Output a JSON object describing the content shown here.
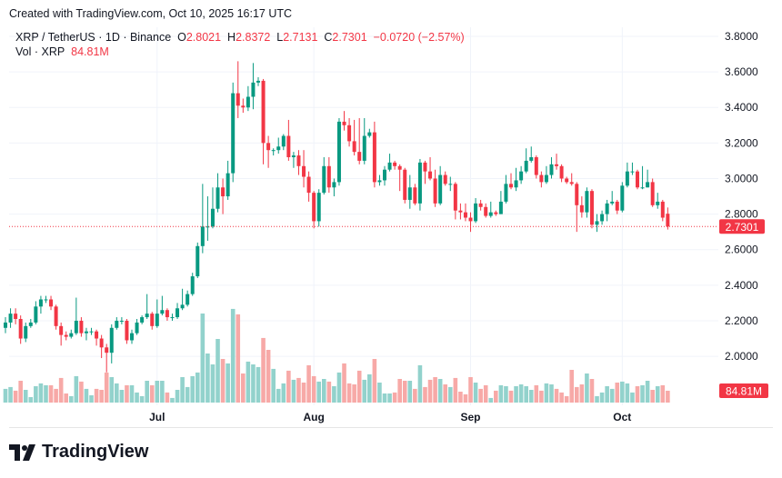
{
  "header": {
    "created": "Created with TradingView.com, Oct 10, 2025 16:17 UTC"
  },
  "legend": {
    "symbol": "XRP / TetherUS · 1D · Binance",
    "o_label": "O",
    "o": "2.8021",
    "h_label": "H",
    "h": "2.8372",
    "l_label": "L",
    "l": "2.7131",
    "c_label": "C",
    "c": "2.7301",
    "change": "−0.0720 (−2.57%)",
    "vol_label": "Vol · XRP",
    "vol": "84.81M"
  },
  "branding": {
    "logo_text": "TradingView"
  },
  "chart_data": {
    "type": "candlestick",
    "title": "XRP / TetherUS · 1D · Binance",
    "ylim": [
      1.9,
      3.8
    ],
    "y_ticks": [
      "3.8000",
      "3.6000",
      "3.4000",
      "3.2000",
      "3.0000",
      "2.8000",
      "2.6000",
      "2.4000",
      "2.2000",
      "2.0000"
    ],
    "x_ticks": [
      {
        "label": "Jul",
        "date": "2025-07-01"
      },
      {
        "label": "Aug",
        "date": "2025-08-01"
      },
      {
        "label": "Sep",
        "date": "2025-09-01"
      },
      {
        "label": "Oct",
        "date": "2025-10-01"
      }
    ],
    "last_price": "2.7301",
    "last_volume": "84.81M",
    "grid": true,
    "colors": {
      "up": "#089981",
      "down": "#F23645",
      "vol_up": "#92D2CC",
      "vol_down": "#F7A9A7"
    },
    "columns": [
      "date",
      "open",
      "high",
      "low",
      "close",
      "volume_M"
    ],
    "candles": [
      [
        "2025-06-01",
        2.16,
        2.22,
        2.13,
        2.19,
        98
      ],
      [
        "2025-06-02",
        2.19,
        2.27,
        2.16,
        2.24,
        111
      ],
      [
        "2025-06-03",
        2.24,
        2.27,
        2.18,
        2.21,
        85
      ],
      [
        "2025-06-04",
        2.21,
        2.23,
        2.07,
        2.1,
        156
      ],
      [
        "2025-06-05",
        2.1,
        2.19,
        2.08,
        2.17,
        91
      ],
      [
        "2025-06-06",
        2.17,
        2.21,
        2.16,
        2.19,
        39
      ],
      [
        "2025-06-07",
        2.19,
        2.31,
        2.18,
        2.28,
        117
      ],
      [
        "2025-06-08",
        2.28,
        2.34,
        2.24,
        2.32,
        137
      ],
      [
        "2025-06-09",
        2.32,
        2.34,
        2.3,
        2.32,
        124
      ],
      [
        "2025-06-10",
        2.32,
        2.34,
        2.26,
        2.28,
        124
      ],
      [
        "2025-06-11",
        2.28,
        2.29,
        2.15,
        2.17,
        98
      ],
      [
        "2025-06-12",
        2.17,
        2.19,
        2.06,
        2.12,
        176
      ],
      [
        "2025-06-13",
        2.12,
        2.14,
        2.09,
        2.11,
        65
      ],
      [
        "2025-06-14",
        2.11,
        2.15,
        2.1,
        2.13,
        46
      ],
      [
        "2025-06-15",
        2.13,
        2.33,
        2.12,
        2.2,
        189
      ],
      [
        "2025-06-16",
        2.2,
        2.22,
        2.11,
        2.13,
        150
      ],
      [
        "2025-06-17",
        2.13,
        2.16,
        2.09,
        2.14,
        98
      ],
      [
        "2025-06-18",
        2.14,
        2.16,
        2.12,
        2.14,
        52
      ],
      [
        "2025-06-19",
        2.14,
        2.15,
        2.06,
        2.1,
        98
      ],
      [
        "2025-06-20",
        2.1,
        2.12,
        1.99,
        2.05,
        91
      ],
      [
        "2025-06-21",
        2.05,
        2.07,
        1.91,
        2.02,
        215
      ],
      [
        "2025-06-22",
        2.02,
        2.18,
        1.96,
        2.16,
        182
      ],
      [
        "2025-06-23",
        2.16,
        2.22,
        2.15,
        2.2,
        137
      ],
      [
        "2025-06-24",
        2.2,
        2.22,
        2.18,
        2.2,
        91
      ],
      [
        "2025-06-25",
        2.2,
        2.21,
        2.07,
        2.09,
        124
      ],
      [
        "2025-06-26",
        2.09,
        2.15,
        2.07,
        2.13,
        124
      ],
      [
        "2025-06-27",
        2.13,
        2.21,
        2.12,
        2.19,
        72
      ],
      [
        "2025-06-28",
        2.19,
        2.23,
        2.18,
        2.22,
        46
      ],
      [
        "2025-06-29",
        2.22,
        2.35,
        2.21,
        2.24,
        156
      ],
      [
        "2025-06-30",
        2.24,
        2.25,
        2.15,
        2.17,
        124
      ],
      [
        "2025-07-01",
        2.17,
        2.32,
        2.16,
        2.24,
        156
      ],
      [
        "2025-07-02",
        2.24,
        2.34,
        2.23,
        2.26,
        156
      ],
      [
        "2025-07-03",
        2.26,
        2.27,
        2.2,
        2.22,
        72
      ],
      [
        "2025-07-04",
        2.22,
        2.24,
        2.2,
        2.22,
        33
      ],
      [
        "2025-07-05",
        2.22,
        2.3,
        2.21,
        2.27,
        91
      ],
      [
        "2025-07-06",
        2.27,
        2.38,
        2.26,
        2.29,
        182
      ],
      [
        "2025-07-07",
        2.29,
        2.37,
        2.28,
        2.35,
        111
      ],
      [
        "2025-07-08",
        2.35,
        2.47,
        2.34,
        2.45,
        189
      ],
      [
        "2025-07-09",
        2.45,
        2.64,
        2.44,
        2.62,
        215
      ],
      [
        "2025-07-10",
        2.62,
        2.97,
        2.58,
        2.73,
        637
      ],
      [
        "2025-07-11",
        2.73,
        2.9,
        2.65,
        2.73,
        351
      ],
      [
        "2025-07-12",
        2.73,
        2.95,
        2.72,
        2.83,
        273
      ],
      [
        "2025-07-13",
        2.83,
        3.03,
        2.81,
        2.95,
        455
      ],
      [
        "2025-07-14",
        2.95,
        3.0,
        2.8,
        2.9,
        312
      ],
      [
        "2025-07-15",
        2.9,
        3.1,
        2.88,
        3.03,
        280
      ],
      [
        "2025-07-16",
        3.03,
        3.54,
        2.98,
        3.48,
        670
      ],
      [
        "2025-07-17",
        3.48,
        3.66,
        3.34,
        3.41,
        631
      ],
      [
        "2025-07-18",
        3.41,
        3.45,
        3.37,
        3.4,
        208
      ],
      [
        "2025-07-19",
        3.4,
        3.52,
        3.38,
        3.46,
        293
      ],
      [
        "2025-07-20",
        3.46,
        3.65,
        3.39,
        3.54,
        273
      ],
      [
        "2025-07-21",
        3.54,
        3.57,
        3.52,
        3.55,
        254
      ],
      [
        "2025-07-22",
        3.55,
        3.56,
        3.08,
        3.2,
        462
      ],
      [
        "2025-07-23",
        3.2,
        3.24,
        3.06,
        3.16,
        377
      ],
      [
        "2025-07-24",
        3.16,
        3.17,
        3.13,
        3.16,
        241
      ],
      [
        "2025-07-25",
        3.16,
        3.23,
        3.14,
        3.18,
        98
      ],
      [
        "2025-07-26",
        3.18,
        3.25,
        3.16,
        3.24,
        137
      ],
      [
        "2025-07-27",
        3.24,
        3.33,
        3.1,
        3.12,
        228
      ],
      [
        "2025-07-28",
        3.12,
        3.15,
        3.06,
        3.13,
        163
      ],
      [
        "2025-07-29",
        3.13,
        3.16,
        3.02,
        3.07,
        176
      ],
      [
        "2025-07-30",
        3.07,
        3.16,
        2.95,
        3.01,
        143
      ],
      [
        "2025-07-31",
        3.01,
        3.04,
        2.87,
        2.92,
        267
      ],
      [
        "2025-08-01",
        2.92,
        2.93,
        2.72,
        2.76,
        189
      ],
      [
        "2025-08-02",
        2.76,
        2.94,
        2.73,
        2.92,
        150
      ],
      [
        "2025-08-03",
        2.92,
        3.12,
        2.91,
        3.07,
        169
      ],
      [
        "2025-08-04",
        3.07,
        3.12,
        2.92,
        2.95,
        150
      ],
      [
        "2025-08-05",
        2.95,
        3.0,
        2.9,
        2.98,
        117
      ],
      [
        "2025-08-06",
        2.98,
        3.34,
        2.96,
        3.32,
        215
      ],
      [
        "2025-08-07",
        3.32,
        3.38,
        3.27,
        3.3,
        280
      ],
      [
        "2025-08-08",
        3.3,
        3.34,
        3.18,
        3.21,
        137
      ],
      [
        "2025-08-09",
        3.21,
        3.33,
        3.13,
        3.15,
        130
      ],
      [
        "2025-08-10",
        3.15,
        3.34,
        3.08,
        3.1,
        228
      ],
      [
        "2025-08-11",
        3.1,
        3.34,
        3.08,
        3.24,
        163
      ],
      [
        "2025-08-12",
        3.24,
        3.28,
        3.23,
        3.26,
        202
      ],
      [
        "2025-08-13",
        3.26,
        3.32,
        2.95,
        2.98,
        312
      ],
      [
        "2025-08-14",
        2.98,
        3.02,
        2.96,
        2.99,
        143
      ],
      [
        "2025-08-15",
        2.99,
        3.07,
        2.96,
        3.05,
        65
      ],
      [
        "2025-08-16",
        3.05,
        3.14,
        3.04,
        3.09,
        65
      ],
      [
        "2025-08-17",
        3.09,
        3.1,
        3.05,
        3.07,
        72
      ],
      [
        "2025-08-18",
        3.07,
        3.08,
        2.93,
        3.05,
        169
      ],
      [
        "2025-08-19",
        3.05,
        3.06,
        2.86,
        2.88,
        156
      ],
      [
        "2025-08-20",
        2.88,
        3.02,
        2.83,
        2.95,
        156
      ],
      [
        "2025-08-21",
        2.95,
        2.97,
        2.85,
        2.86,
        98
      ],
      [
        "2025-08-22",
        2.86,
        3.11,
        2.82,
        3.09,
        267
      ],
      [
        "2025-08-23",
        3.09,
        3.1,
        2.97,
        3.04,
        111
      ],
      [
        "2025-08-24",
        3.04,
        3.12,
        2.99,
        3.0,
        163
      ],
      [
        "2025-08-25",
        3.0,
        3.05,
        2.84,
        2.86,
        182
      ],
      [
        "2025-08-26",
        2.86,
        3.07,
        2.85,
        3.02,
        169
      ],
      [
        "2025-08-27",
        3.02,
        3.04,
        2.96,
        2.97,
        130
      ],
      [
        "2025-08-28",
        2.97,
        3.01,
        2.93,
        2.97,
        111
      ],
      [
        "2025-08-29",
        2.97,
        2.98,
        2.77,
        2.82,
        176
      ],
      [
        "2025-08-30",
        2.82,
        2.86,
        2.77,
        2.81,
        78
      ],
      [
        "2025-08-31",
        2.81,
        2.86,
        2.76,
        2.78,
        59
      ],
      [
        "2025-09-01",
        2.78,
        2.81,
        2.7,
        2.76,
        182
      ],
      [
        "2025-09-02",
        2.76,
        2.89,
        2.75,
        2.86,
        143
      ],
      [
        "2025-09-03",
        2.86,
        2.88,
        2.82,
        2.84,
        98
      ],
      [
        "2025-09-04",
        2.84,
        2.86,
        2.78,
        2.79,
        124
      ],
      [
        "2025-09-05",
        2.79,
        2.87,
        2.78,
        2.81,
        33
      ],
      [
        "2025-09-06",
        2.81,
        2.82,
        2.79,
        2.8,
        85
      ],
      [
        "2025-09-07",
        2.8,
        2.93,
        2.8,
        2.87,
        124
      ],
      [
        "2025-09-08",
        2.87,
        3.02,
        2.86,
        2.97,
        117
      ],
      [
        "2025-09-09",
        2.97,
        3.03,
        2.94,
        2.95,
        85
      ],
      [
        "2025-09-10",
        2.95,
        3.06,
        2.93,
        2.99,
        117
      ],
      [
        "2025-09-11",
        2.99,
        3.07,
        2.97,
        3.04,
        130
      ],
      [
        "2025-09-12",
        3.04,
        3.17,
        3.03,
        3.1,
        117
      ],
      [
        "2025-09-13",
        3.1,
        3.18,
        3.09,
        3.12,
        91
      ],
      [
        "2025-09-14",
        3.12,
        3.13,
        3.0,
        3.02,
        124
      ],
      [
        "2025-09-15",
        3.02,
        3.04,
        2.95,
        2.98,
        85
      ],
      [
        "2025-09-16",
        2.98,
        3.07,
        2.97,
        3.02,
        137
      ],
      [
        "2025-09-17",
        3.02,
        3.12,
        3.0,
        3.08,
        130
      ],
      [
        "2025-09-18",
        3.08,
        3.14,
        3.05,
        3.07,
        98
      ],
      [
        "2025-09-19",
        3.07,
        3.08,
        2.98,
        3.0,
        72
      ],
      [
        "2025-09-20",
        3.0,
        3.01,
        2.97,
        2.98,
        46
      ],
      [
        "2025-09-21",
        2.98,
        3.03,
        2.96,
        2.97,
        234
      ],
      [
        "2025-09-22",
        2.97,
        2.98,
        2.7,
        2.85,
        111
      ],
      [
        "2025-09-23",
        2.85,
        2.9,
        2.78,
        2.81,
        130
      ],
      [
        "2025-09-24",
        2.81,
        2.95,
        2.78,
        2.93,
        208
      ],
      [
        "2025-09-25",
        2.93,
        2.94,
        2.72,
        2.74,
        169
      ],
      [
        "2025-09-26",
        2.74,
        2.8,
        2.7,
        2.76,
        46
      ],
      [
        "2025-09-27",
        2.76,
        2.82,
        2.74,
        2.8,
        72
      ],
      [
        "2025-09-28",
        2.8,
        2.88,
        2.76,
        2.86,
        117
      ],
      [
        "2025-09-29",
        2.86,
        2.93,
        2.85,
        2.87,
        98
      ],
      [
        "2025-09-30",
        2.87,
        2.88,
        2.8,
        2.82,
        143
      ],
      [
        "2025-10-01",
        2.82,
        2.98,
        2.81,
        2.96,
        150
      ],
      [
        "2025-10-02",
        2.96,
        3.09,
        2.95,
        3.04,
        137
      ],
      [
        "2025-10-03",
        3.04,
        3.09,
        3.02,
        3.04,
        72
      ],
      [
        "2025-10-04",
        3.04,
        3.05,
        2.94,
        2.95,
        117
      ],
      [
        "2025-10-05",
        2.95,
        3.07,
        2.94,
        2.95,
        124
      ],
      [
        "2025-10-06",
        2.95,
        3.05,
        2.95,
        2.98,
        156
      ],
      [
        "2025-10-07",
        2.98,
        3.0,
        2.84,
        2.85,
        91
      ],
      [
        "2025-10-08",
        2.85,
        2.92,
        2.83,
        2.87,
        117
      ],
      [
        "2025-10-09",
        2.87,
        2.88,
        2.76,
        2.78,
        124
      ],
      [
        "2025-10-10",
        2.8021,
        2.8372,
        2.7131,
        2.7301,
        84.81
      ]
    ]
  }
}
